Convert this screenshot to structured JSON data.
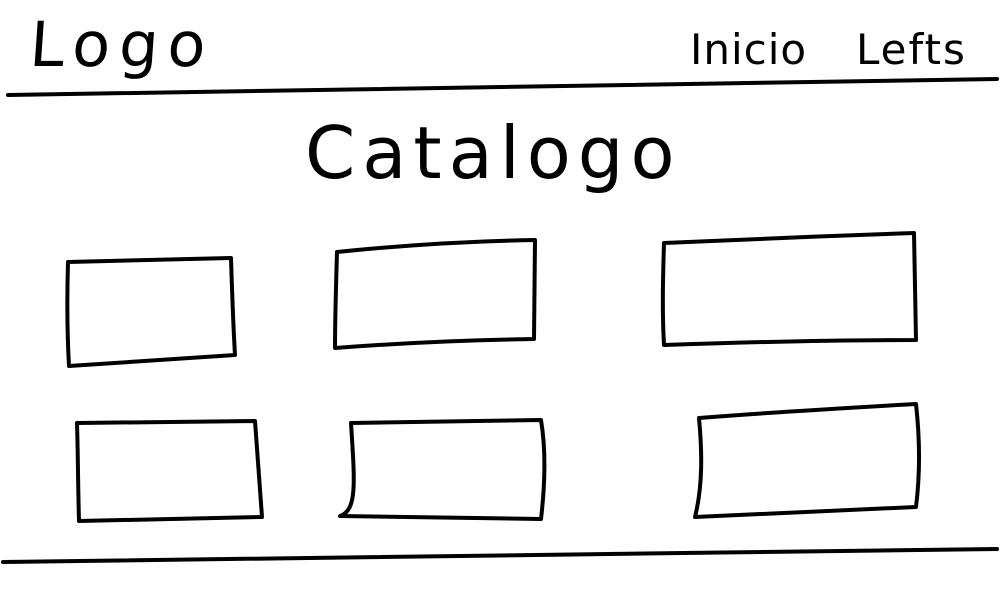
{
  "header": {
    "logo_text": "Logo",
    "nav": [
      {
        "label": "Inicio"
      },
      {
        "label": "Lefts"
      }
    ]
  },
  "main": {
    "title": "Catalogo",
    "catalog_items": [
      {
        "label": ""
      },
      {
        "label": ""
      },
      {
        "label": ""
      },
      {
        "label": ""
      },
      {
        "label": ""
      },
      {
        "label": ""
      }
    ]
  }
}
